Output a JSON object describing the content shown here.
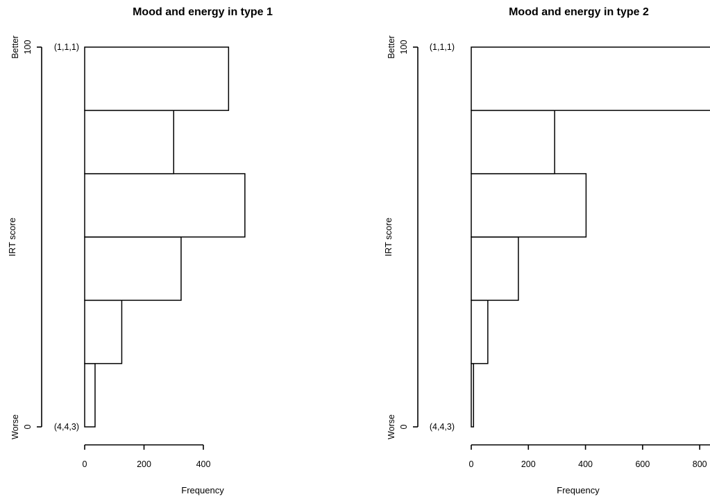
{
  "chart_data": [
    {
      "type": "bar",
      "orientation": "horizontal",
      "title": "Mood and energy in type 1",
      "xlabel": "Frequency",
      "ylabel": "IRT score",
      "xlim": [
        0,
        500
      ],
      "xticks": [
        "0",
        "200",
        "400"
      ],
      "ylim": [
        0,
        100
      ],
      "yticks": [
        "0",
        "100"
      ],
      "y_end_labels": {
        "top": "Better",
        "bottom": "Worse"
      },
      "category_labels": {
        "top": "(1,1,1)",
        "bottom": "(4,4,3)"
      },
      "bin_edges": [
        0,
        16.67,
        33.33,
        50,
        66.67,
        83.33,
        100
      ],
      "values": [
        35,
        125,
        325,
        540,
        300,
        485
      ],
      "grid": false
    },
    {
      "type": "bar",
      "orientation": "horizontal",
      "title": "Mood and energy in type 2",
      "xlabel": "Frequency",
      "ylabel": "IRT score",
      "xlim": [
        0,
        840
      ],
      "xticks": [
        "0",
        "200",
        "400",
        "600",
        "800"
      ],
      "ylim": [
        0,
        100
      ],
      "yticks": [
        "0",
        "100"
      ],
      "y_end_labels": {
        "top": "Better",
        "bottom": "Worse"
      },
      "category_labels": {
        "top": "(1,1,1)",
        "bottom": "(4,4,3)"
      },
      "bin_edges": [
        0,
        16.67,
        33.33,
        50,
        66.67,
        83.33,
        100
      ],
      "values": [
        8,
        58,
        165,
        402,
        292,
        840
      ],
      "grid": false
    }
  ]
}
